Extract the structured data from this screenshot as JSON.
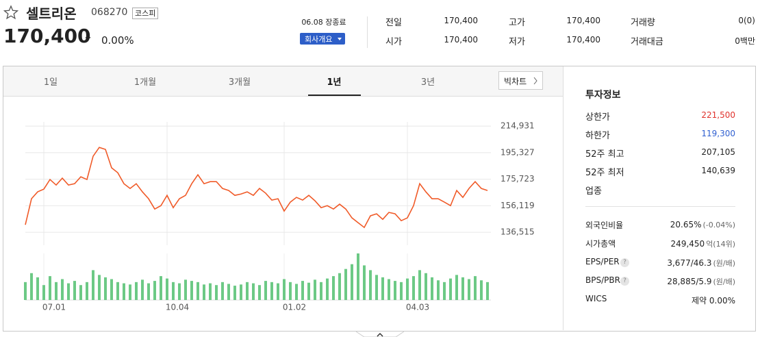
{
  "header": {
    "title": "셀트리온",
    "code": "068270",
    "market": "코스피",
    "price": "170,400",
    "change_sign": "–",
    "change_rate": "0.00%",
    "status": "06.08 장종료",
    "company_button": "회사개요"
  },
  "quote": {
    "rows": [
      [
        {
          "label": "전일",
          "value": "170,400"
        },
        {
          "label": "고가",
          "value": "170,400"
        },
        {
          "label": "거래량",
          "value": "0(0)"
        }
      ],
      [
        {
          "label": "시가",
          "value": "170,400"
        },
        {
          "label": "저가",
          "value": "170,400"
        },
        {
          "label": "거래대금",
          "value": "0백만"
        }
      ]
    ]
  },
  "tabs": [
    "1일",
    "1개월",
    "3개월",
    "1년",
    "3년"
  ],
  "active_tab": 3,
  "big_chart": "빅차트",
  "chart_data": {
    "type": "line",
    "categories": [
      null,
      null,
      null,
      "07.01",
      null,
      null,
      null,
      null,
      null,
      null,
      null,
      null,
      null,
      null,
      null,
      null,
      null,
      null,
      null,
      null,
      null,
      null,
      null,
      "10.04",
      null,
      null,
      null,
      null,
      null,
      null,
      null,
      null,
      null,
      null,
      null,
      null,
      null,
      null,
      null,
      null,
      null,
      null,
      "01.02",
      null,
      null,
      null,
      null,
      null,
      null,
      null,
      null,
      null,
      null,
      null,
      null,
      null,
      null,
      null,
      null,
      null,
      null,
      null,
      "04.03",
      null,
      null,
      null,
      null,
      null,
      null,
      null,
      null,
      null,
      null,
      null,
      null,
      null
    ],
    "values": [
      142100,
      161300,
      166400,
      168400,
      175500,
      171400,
      176500,
      171400,
      172400,
      177500,
      175500,
      192700,
      199200,
      197700,
      184100,
      180500,
      172400,
      168900,
      172400,
      166400,
      161300,
      153700,
      156200,
      163800,
      154700,
      161300,
      163800,
      172400,
      179000,
      172400,
      173900,
      173900,
      168900,
      167400,
      163800,
      164800,
      166400,
      163800,
      168900,
      165400,
      160300,
      161300,
      152200,
      158800,
      162300,
      160300,
      163800,
      159800,
      154700,
      156200,
      153700,
      157300,
      153700,
      147200,
      143600,
      140100,
      148700,
      150200,
      146100,
      151200,
      150200,
      145100,
      147200,
      156200,
      172400,
      166400,
      161300,
      161300,
      158800,
      156200,
      167400,
      162300,
      168900,
      173900,
      168900,
      167400
    ],
    "color": "#f05a28",
    "volume": {
      "values": [
        30,
        45,
        38,
        25,
        40,
        30,
        35,
        28,
        32,
        25,
        30,
        50,
        42,
        38,
        35,
        30,
        28,
        26,
        30,
        34,
        28,
        32,
        40,
        36,
        30,
        28,
        34,
        32,
        30,
        26,
        28,
        25,
        30,
        27,
        24,
        26,
        30,
        28,
        25,
        32,
        30,
        28,
        35,
        30,
        27,
        32,
        29,
        34,
        30,
        36,
        40,
        45,
        52,
        60,
        78,
        58,
        50,
        42,
        38,
        35,
        32,
        30,
        36,
        40,
        50,
        45,
        38,
        33,
        30,
        36,
        42,
        38,
        35,
        40,
        33,
        30
      ],
      "color": "#6cc985"
    },
    "ylim": [
      127000,
      218000
    ],
    "yticks": [
      {
        "value": 214931,
        "label": "214,931"
      },
      {
        "value": 195327,
        "label": "195,327"
      },
      {
        "value": 175723,
        "label": "175,723"
      },
      {
        "value": 156119,
        "label": "156,119"
      },
      {
        "value": 136515,
        "label": "136,515"
      }
    ],
    "grid": true
  },
  "invest_info": {
    "title": "투자정보",
    "rows": [
      {
        "label": "상한가",
        "value": "221,500",
        "color": "#e0312b"
      },
      {
        "label": "하한가",
        "value": "119,300",
        "color": "#2f5fd0"
      },
      {
        "label": "52주 최고",
        "value": "207,105"
      },
      {
        "label": "52주 최저",
        "value": "140,639"
      },
      {
        "label": "업종"
      }
    ],
    "rows2": [
      {
        "label": "외국인비율",
        "value": "20.65%",
        "note": "(-0.04%)"
      },
      {
        "label": "시가총액",
        "value": "249,450",
        "note": "억(14위)"
      },
      {
        "label": "EPS/PER",
        "help": "?",
        "value": "3,677/46.3",
        "note": "(원/배)"
      },
      {
        "label": "BPS/PBR",
        "help": "?",
        "value": "28,885/5.9",
        "note": "(원/배)"
      },
      {
        "label": "WICS",
        "value": "제약 0.00%"
      }
    ]
  }
}
